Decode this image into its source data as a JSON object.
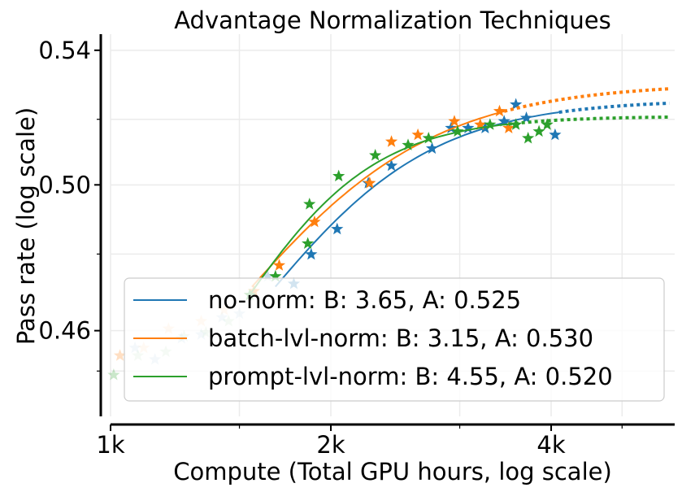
{
  "chart_data": {
    "type": "scatter",
    "title": "Advantage Normalization Techniques",
    "xlabel": "Compute (Total GPU hours, log scale)",
    "ylabel": "Pass rate (log scale)",
    "x_scale": "log",
    "y_scale": "log",
    "xlim": [
      1000,
      5900
    ],
    "ylim": [
      0.438,
      0.545
    ],
    "x_ticks": [
      {
        "value": 1000,
        "label": "1k"
      },
      {
        "value": 2000,
        "label": "2k"
      },
      {
        "value": 4000,
        "label": "4k"
      }
    ],
    "x_minor_ticks": [
      1500,
      3000,
      5000
    ],
    "y_ticks": [
      {
        "value": 0.46,
        "label": "0.46"
      },
      {
        "value": 0.5,
        "label": "0.50"
      },
      {
        "value": 0.54,
        "label": "0.54"
      }
    ],
    "y_minor_ticks": [
      0.4495,
      0.4806,
      0.5191
    ],
    "grid": true,
    "legend_position": "lower-right",
    "legend_entries": [
      "no-norm: B: 3.65, A: 0.525",
      "batch-lvl-norm: B: 3.15, A: 0.530",
      "prompt-lvl-norm: B: 4.55, A: 0.520"
    ],
    "series": [
      {
        "name": "no-norm",
        "color": "#1f77b4",
        "fit": {
          "A": 0.525,
          "fit_start": 1680,
          "fit_end": 4100,
          "extrapolate_end": 5800
        },
        "points": [
          [
            1080,
            0.4555
          ],
          [
            1150,
            0.4525
          ],
          [
            1250,
            0.458
          ],
          [
            1330,
            0.459
          ],
          [
            1420,
            0.4635
          ],
          [
            1500,
            0.4645
          ],
          [
            1640,
            0.4745
          ],
          [
            1780,
            0.4725
          ],
          [
            1880,
            0.4805
          ],
          [
            2040,
            0.4875
          ],
          [
            2250,
            0.5005
          ],
          [
            2420,
            0.5055
          ],
          [
            2750,
            0.5105
          ],
          [
            2920,
            0.5165
          ],
          [
            3080,
            0.5165
          ],
          [
            3250,
            0.5165
          ],
          [
            3450,
            0.5185
          ],
          [
            3580,
            0.5235
          ],
          [
            3700,
            0.5195
          ],
          [
            4050,
            0.5145
          ]
        ]
      },
      {
        "name": "batch-lvl-norm",
        "color": "#ff7f0e",
        "fit": {
          "A": 0.53,
          "fit_start": 1560,
          "fit_end": 3450,
          "extrapolate_end": 5800
        },
        "points": [
          [
            1030,
            0.4535
          ],
          [
            1110,
            0.4555
          ],
          [
            1200,
            0.4605
          ],
          [
            1330,
            0.4625
          ],
          [
            1430,
            0.4655
          ],
          [
            1570,
            0.4705
          ],
          [
            1700,
            0.4775
          ],
          [
            1900,
            0.4895
          ],
          [
            2260,
            0.5005
          ],
          [
            2420,
            0.5125
          ],
          [
            2630,
            0.5145
          ],
          [
            2950,
            0.5185
          ],
          [
            3200,
            0.5175
          ],
          [
            3400,
            0.5215
          ],
          [
            3500,
            0.5165
          ]
        ]
      },
      {
        "name": "prompt-lvl-norm",
        "color": "#2ca02c",
        "fit": {
          "A": 0.52,
          "fit_start": 1540,
          "fit_end": 3500,
          "extrapolate_end": 5800
        },
        "points": [
          [
            1010,
            0.4485
          ],
          [
            1090,
            0.4535
          ],
          [
            1190,
            0.4545
          ],
          [
            1260,
            0.4585
          ],
          [
            1350,
            0.4595
          ],
          [
            1450,
            0.4625
          ],
          [
            1550,
            0.4695
          ],
          [
            1680,
            0.4745
          ],
          [
            1860,
            0.4835
          ],
          [
            1870,
            0.4945
          ],
          [
            2050,
            0.5025
          ],
          [
            2300,
            0.5085
          ],
          [
            2550,
            0.5115
          ],
          [
            2720,
            0.5135
          ],
          [
            2980,
            0.5155
          ],
          [
            3300,
            0.5175
          ],
          [
            3580,
            0.5175
          ],
          [
            3720,
            0.5135
          ],
          [
            3850,
            0.5155
          ],
          [
            3950,
            0.5175
          ]
        ]
      }
    ]
  }
}
